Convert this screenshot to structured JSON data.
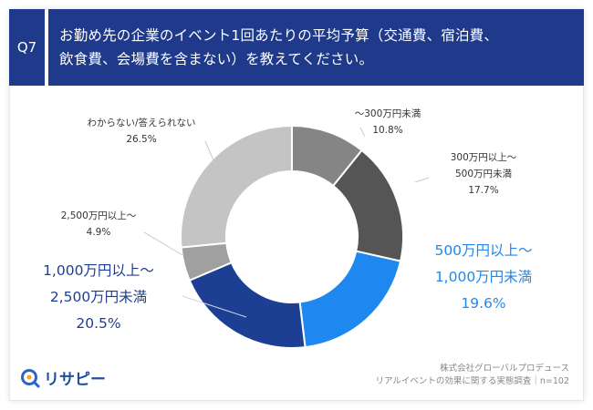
{
  "question": {
    "badge": "Q7",
    "line1": "お勤め先の企業のイベント1回あたりの平均予算（交通費、宿泊費、",
    "line2": "飲食費、会場費を含まない）を教えてください。"
  },
  "chart_data": {
    "type": "pie",
    "donut": true,
    "slices": [
      {
        "label_lines": [
          "～300万円未満"
        ],
        "pct_text": "10.8%",
        "value": 10.8,
        "color": "#858585"
      },
      {
        "label_lines": [
          "300万円以上～",
          "500万円未満"
        ],
        "pct_text": "17.7%",
        "value": 17.7,
        "color": "#555555"
      },
      {
        "label_lines": [
          "500万円以上～",
          "1,000万円未満"
        ],
        "pct_text": "19.6%",
        "value": 19.6,
        "color": "#1e88f0"
      },
      {
        "label_lines": [
          "1,000万円以上～",
          "2,500万円未満"
        ],
        "pct_text": "20.5%",
        "value": 20.5,
        "color": "#1c3f94"
      },
      {
        "label_lines": [
          "2,500万円以上～"
        ],
        "pct_text": "4.9%",
        "value": 4.9,
        "color": "#a0a0a0"
      },
      {
        "label_lines": [
          "わからない/答えられない"
        ],
        "pct_text": "26.5%",
        "value": 26.5,
        "color": "#c4c4c4"
      }
    ],
    "label_colors": {
      "small": "#333333",
      "highlight_blue": "#1e88f0",
      "highlight_navy": "#1c3f94"
    }
  },
  "footer": {
    "line1": "株式会社グローバルプロデュース",
    "line2": "リアルイベントの効果に関する実態調査｜n=102"
  },
  "logo": {
    "text": "リサピー",
    "color": "#1f4fa0"
  }
}
